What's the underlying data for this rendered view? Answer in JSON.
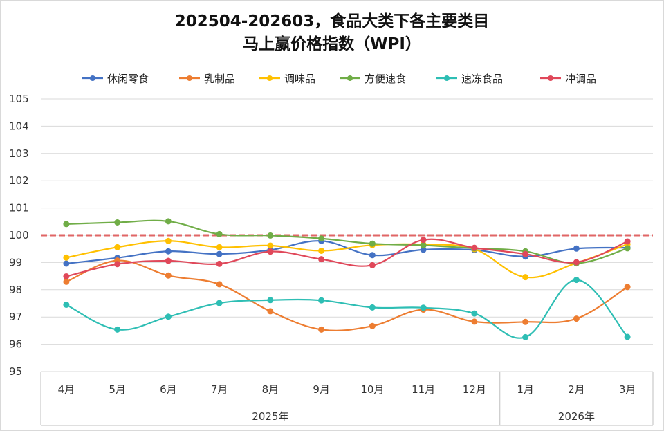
{
  "title_lines": [
    "202504-202603，食品大类下各主要类目",
    "马上赢价格指数（WPI）"
  ],
  "chart_data": {
    "type": "line",
    "categories": [
      "4月",
      "5月",
      "6月",
      "7月",
      "8月",
      "9月",
      "10月",
      "11月",
      "12月",
      "1月",
      "2月",
      "3月"
    ],
    "year_groups": [
      {
        "label": "2025年",
        "count": 9
      },
      {
        "label": "2026年",
        "count": 3
      }
    ],
    "ylim": [
      95,
      105
    ],
    "yticks": [
      95,
      96,
      97,
      98,
      99,
      100,
      101,
      102,
      103,
      104,
      105
    ],
    "reference_line": 100,
    "reference_color": "#e06666",
    "legend_position": "top",
    "grid": true,
    "series": [
      {
        "name": "休闲零食",
        "color": "#4472c4",
        "values": [
          98.96,
          99.17,
          99.41,
          99.31,
          99.46,
          99.79,
          99.27,
          99.47,
          99.46,
          99.22,
          99.51,
          99.54
        ]
      },
      {
        "name": "乳制品",
        "color": "#ed7d31",
        "values": [
          98.29,
          99.07,
          98.52,
          98.2,
          97.21,
          96.54,
          96.67,
          97.27,
          96.83,
          96.82,
          96.94,
          98.1
        ]
      },
      {
        "name": "调味品",
        "color": "#ffc000",
        "values": [
          99.18,
          99.56,
          99.79,
          99.56,
          99.62,
          99.43,
          99.64,
          99.66,
          99.49,
          98.46,
          98.98,
          99.67
        ]
      },
      {
        "name": "方便速食",
        "color": "#70ad47",
        "values": [
          100.41,
          100.47,
          100.51,
          100.04,
          99.99,
          99.88,
          99.69,
          99.63,
          99.52,
          99.41,
          98.97,
          99.52
        ]
      },
      {
        "name": "速冻食品",
        "color": "#2ebeb4",
        "values": [
          97.45,
          96.54,
          97.01,
          97.51,
          97.62,
          97.61,
          97.35,
          97.34,
          97.13,
          96.26,
          98.36,
          96.27
        ]
      },
      {
        "name": "冲调品",
        "color": "#e0485a",
        "values": [
          98.49,
          98.94,
          99.06,
          98.95,
          99.4,
          99.12,
          98.9,
          99.83,
          99.54,
          99.31,
          99.01,
          99.77
        ]
      }
    ]
  }
}
